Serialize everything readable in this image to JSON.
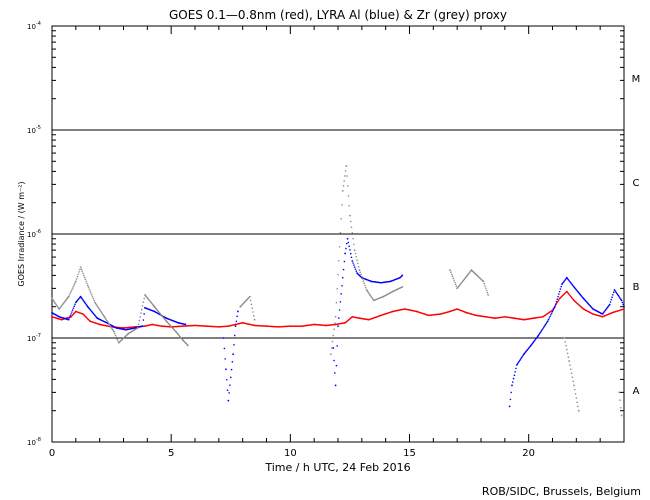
{
  "chart_data": {
    "type": "scatter",
    "title": "GOES 0.1—0.8nm (red), LYRA Al (blue) & Zr (grey) proxy",
    "xlabel": "Time / h UTC, 24 Feb 2016",
    "ylabel": "GOES Irradiance / (W m⁻²)",
    "credit": "ROB/SIDC, Brussels, Belgium",
    "xlim": [
      0,
      24
    ],
    "ylim": [
      1e-08,
      0.0001
    ],
    "log_y": true,
    "grid": false,
    "x_ticks": [
      0,
      5,
      10,
      15,
      20
    ],
    "x_ticklabels": [
      "0",
      "5",
      "10",
      "15",
      "20"
    ],
    "y_ticks": [
      1e-08,
      1e-07,
      1e-06,
      1e-05,
      0.0001
    ],
    "y_ticklabels": [
      {
        "base": "10",
        "exp": "-8"
      },
      {
        "base": "10",
        "exp": "-7"
      },
      {
        "base": "10",
        "exp": "-6"
      },
      {
        "base": "10",
        "exp": "-5"
      },
      {
        "base": "10",
        "exp": "-4"
      }
    ],
    "flare_class_lines": [
      1e-07,
      1e-06,
      1e-05
    ],
    "flare_class_labels": [
      {
        "label": "A",
        "y": 3.16e-08
      },
      {
        "label": "B",
        "y": 3.16e-07
      },
      {
        "label": "C",
        "y": 3.16e-06
      },
      {
        "label": "M",
        "y": 3.16e-05
      }
    ],
    "series": [
      {
        "name": "GOES 0.1—0.8nm",
        "color": "#ff0000",
        "points": [
          [
            0.0,
            1.6e-07
          ],
          [
            0.4,
            1.5e-07
          ],
          [
            0.8,
            1.6e-07
          ],
          [
            1.0,
            1.8e-07
          ],
          [
            1.3,
            1.7e-07
          ],
          [
            1.6,
            1.45e-07
          ],
          [
            2.0,
            1.35e-07
          ],
          [
            2.5,
            1.28e-07
          ],
          [
            3.0,
            1.25e-07
          ],
          [
            3.5,
            1.28e-07
          ],
          [
            3.9,
            1.3e-07
          ],
          [
            4.2,
            1.35e-07
          ],
          [
            4.6,
            1.3e-07
          ],
          [
            5.0,
            1.28e-07
          ],
          [
            5.5,
            1.3e-07
          ],
          [
            6.0,
            1.32e-07
          ],
          [
            6.5,
            1.3e-07
          ],
          [
            7.0,
            1.28e-07
          ],
          [
            7.4,
            1.3e-07
          ],
          [
            7.7,
            1.35e-07
          ],
          [
            8.0,
            1.4e-07
          ],
          [
            8.5,
            1.32e-07
          ],
          [
            9.0,
            1.3e-07
          ],
          [
            9.5,
            1.28e-07
          ],
          [
            10.0,
            1.3e-07
          ],
          [
            10.5,
            1.3e-07
          ],
          [
            11.0,
            1.35e-07
          ],
          [
            11.5,
            1.32e-07
          ],
          [
            11.9,
            1.35e-07
          ],
          [
            12.3,
            1.4e-07
          ],
          [
            12.6,
            1.6e-07
          ],
          [
            12.9,
            1.55e-07
          ],
          [
            13.3,
            1.5e-07
          ],
          [
            13.8,
            1.65e-07
          ],
          [
            14.3,
            1.8e-07
          ],
          [
            14.8,
            1.9e-07
          ],
          [
            15.3,
            1.8e-07
          ],
          [
            15.8,
            1.65e-07
          ],
          [
            16.3,
            1.7e-07
          ],
          [
            16.7,
            1.8e-07
          ],
          [
            17.0,
            1.9e-07
          ],
          [
            17.4,
            1.75e-07
          ],
          [
            17.8,
            1.65e-07
          ],
          [
            18.2,
            1.6e-07
          ],
          [
            18.6,
            1.55e-07
          ],
          [
            19.0,
            1.6e-07
          ],
          [
            19.4,
            1.55e-07
          ],
          [
            19.8,
            1.5e-07
          ],
          [
            20.2,
            1.55e-07
          ],
          [
            20.6,
            1.6e-07
          ],
          [
            21.0,
            1.85e-07
          ],
          [
            21.3,
            2.4e-07
          ],
          [
            21.6,
            2.8e-07
          ],
          [
            21.9,
            2.3e-07
          ],
          [
            22.3,
            1.9e-07
          ],
          [
            22.7,
            1.7e-07
          ],
          [
            23.1,
            1.6e-07
          ],
          [
            23.5,
            1.75e-07
          ],
          [
            24.0,
            1.9e-07
          ]
        ]
      },
      {
        "name": "LYRA Al proxy",
        "color": "#0000ff",
        "points": [
          [
            0.0,
            1.75e-07
          ],
          [
            0.3,
            1.6e-07
          ],
          [
            0.7,
            1.5e-07
          ],
          [
            1.0,
            2.2e-07
          ],
          [
            1.2,
            2.5e-07
          ],
          [
            1.5,
            2e-07
          ],
          [
            1.9,
            1.55e-07
          ],
          [
            2.3,
            1.4e-07
          ],
          [
            2.7,
            1.25e-07
          ],
          [
            3.1,
            1.2e-07
          ],
          [
            3.5,
            1.25e-07
          ],
          [
            3.8,
            1.3e-07
          ],
          [
            3.9,
            1.95e-07
          ],
          [
            4.3,
            1.8e-07
          ],
          [
            4.8,
            1.55e-07
          ],
          [
            5.3,
            1.4e-07
          ],
          [
            5.6,
            1.35e-07
          ],
          [
            7.2,
            1e-07
          ],
          [
            7.3,
            5e-08
          ],
          [
            7.4,
            2.5e-08
          ],
          [
            7.6,
            7e-08
          ],
          [
            7.7,
            1.3e-07
          ],
          [
            7.8,
            1.8e-07
          ],
          [
            11.8,
            8e-08
          ],
          [
            11.9,
            3.5e-08
          ],
          [
            12.0,
            1.3e-07
          ],
          [
            12.3,
            6.5e-07
          ],
          [
            12.4,
            9e-07
          ],
          [
            12.6,
            5.5e-07
          ],
          [
            12.8,
            4.2e-07
          ],
          [
            13.0,
            3.8e-07
          ],
          [
            13.4,
            3.5e-07
          ],
          [
            13.8,
            3.4e-07
          ],
          [
            14.2,
            3.5e-07
          ],
          [
            14.6,
            3.8e-07
          ],
          [
            14.7,
            4e-07
          ],
          [
            19.2,
            2.2e-08
          ],
          [
            19.3,
            3.5e-08
          ],
          [
            19.5,
            5.5e-08
          ],
          [
            19.8,
            7e-08
          ],
          [
            20.1,
            8.5e-08
          ],
          [
            20.4,
            1.05e-07
          ],
          [
            20.8,
            1.45e-07
          ],
          [
            21.1,
            2e-07
          ],
          [
            21.4,
            3.3e-07
          ],
          [
            21.6,
            3.8e-07
          ],
          [
            21.9,
            3.1e-07
          ],
          [
            22.3,
            2.4e-07
          ],
          [
            22.7,
            1.9e-07
          ],
          [
            23.1,
            1.7e-07
          ],
          [
            23.4,
            2.1e-07
          ],
          [
            23.6,
            2.9e-07
          ],
          [
            23.9,
            2.3e-07
          ],
          [
            24.0,
            2e-07
          ]
        ]
      },
      {
        "name": "LYRA Zr proxy",
        "color": "#8c8c8c",
        "points": [
          [
            0.0,
            2.4e-07
          ],
          [
            0.3,
            1.9e-07
          ],
          [
            0.7,
            2.5e-07
          ],
          [
            1.0,
            3.5e-07
          ],
          [
            1.2,
            4.8e-07
          ],
          [
            1.5,
            3.2e-07
          ],
          [
            1.8,
            2.2e-07
          ],
          [
            2.2,
            1.6e-07
          ],
          [
            2.6,
            1.15e-07
          ],
          [
            2.8,
            9e-08
          ],
          [
            3.2,
            1.1e-07
          ],
          [
            3.6,
            1.25e-07
          ],
          [
            3.9,
            2.6e-07
          ],
          [
            4.3,
            2e-07
          ],
          [
            4.8,
            1.45e-07
          ],
          [
            5.2,
            1.15e-07
          ],
          [
            5.5,
            9.5e-08
          ],
          [
            5.7,
            8.5e-08
          ],
          [
            7.9,
            2e-07
          ],
          [
            8.3,
            2.5e-07
          ],
          [
            8.5,
            1.5e-07
          ],
          [
            11.7,
            7e-08
          ],
          [
            11.9,
            1.6e-07
          ],
          [
            12.2,
            2.6e-06
          ],
          [
            12.35,
            4.5e-06
          ],
          [
            12.5,
            1.5e-06
          ],
          [
            12.7,
            7e-07
          ],
          [
            12.9,
            4.5e-07
          ],
          [
            13.2,
            2.9e-07
          ],
          [
            13.5,
            2.3e-07
          ],
          [
            13.9,
            2.5e-07
          ],
          [
            14.3,
            2.8e-07
          ],
          [
            14.7,
            3.1e-07
          ],
          [
            16.7,
            4.5e-07
          ],
          [
            17.0,
            3e-07
          ],
          [
            17.6,
            4.5e-07
          ],
          [
            18.1,
            3.5e-07
          ],
          [
            18.3,
            2.6e-07
          ],
          [
            21.5,
            1e-07
          ],
          [
            21.7,
            6e-08
          ],
          [
            21.9,
            3.5e-08
          ],
          [
            22.1,
            2e-08
          ],
          [
            23.8,
            3e-08
          ],
          [
            23.9,
            1.8e-08
          ]
        ]
      }
    ]
  }
}
